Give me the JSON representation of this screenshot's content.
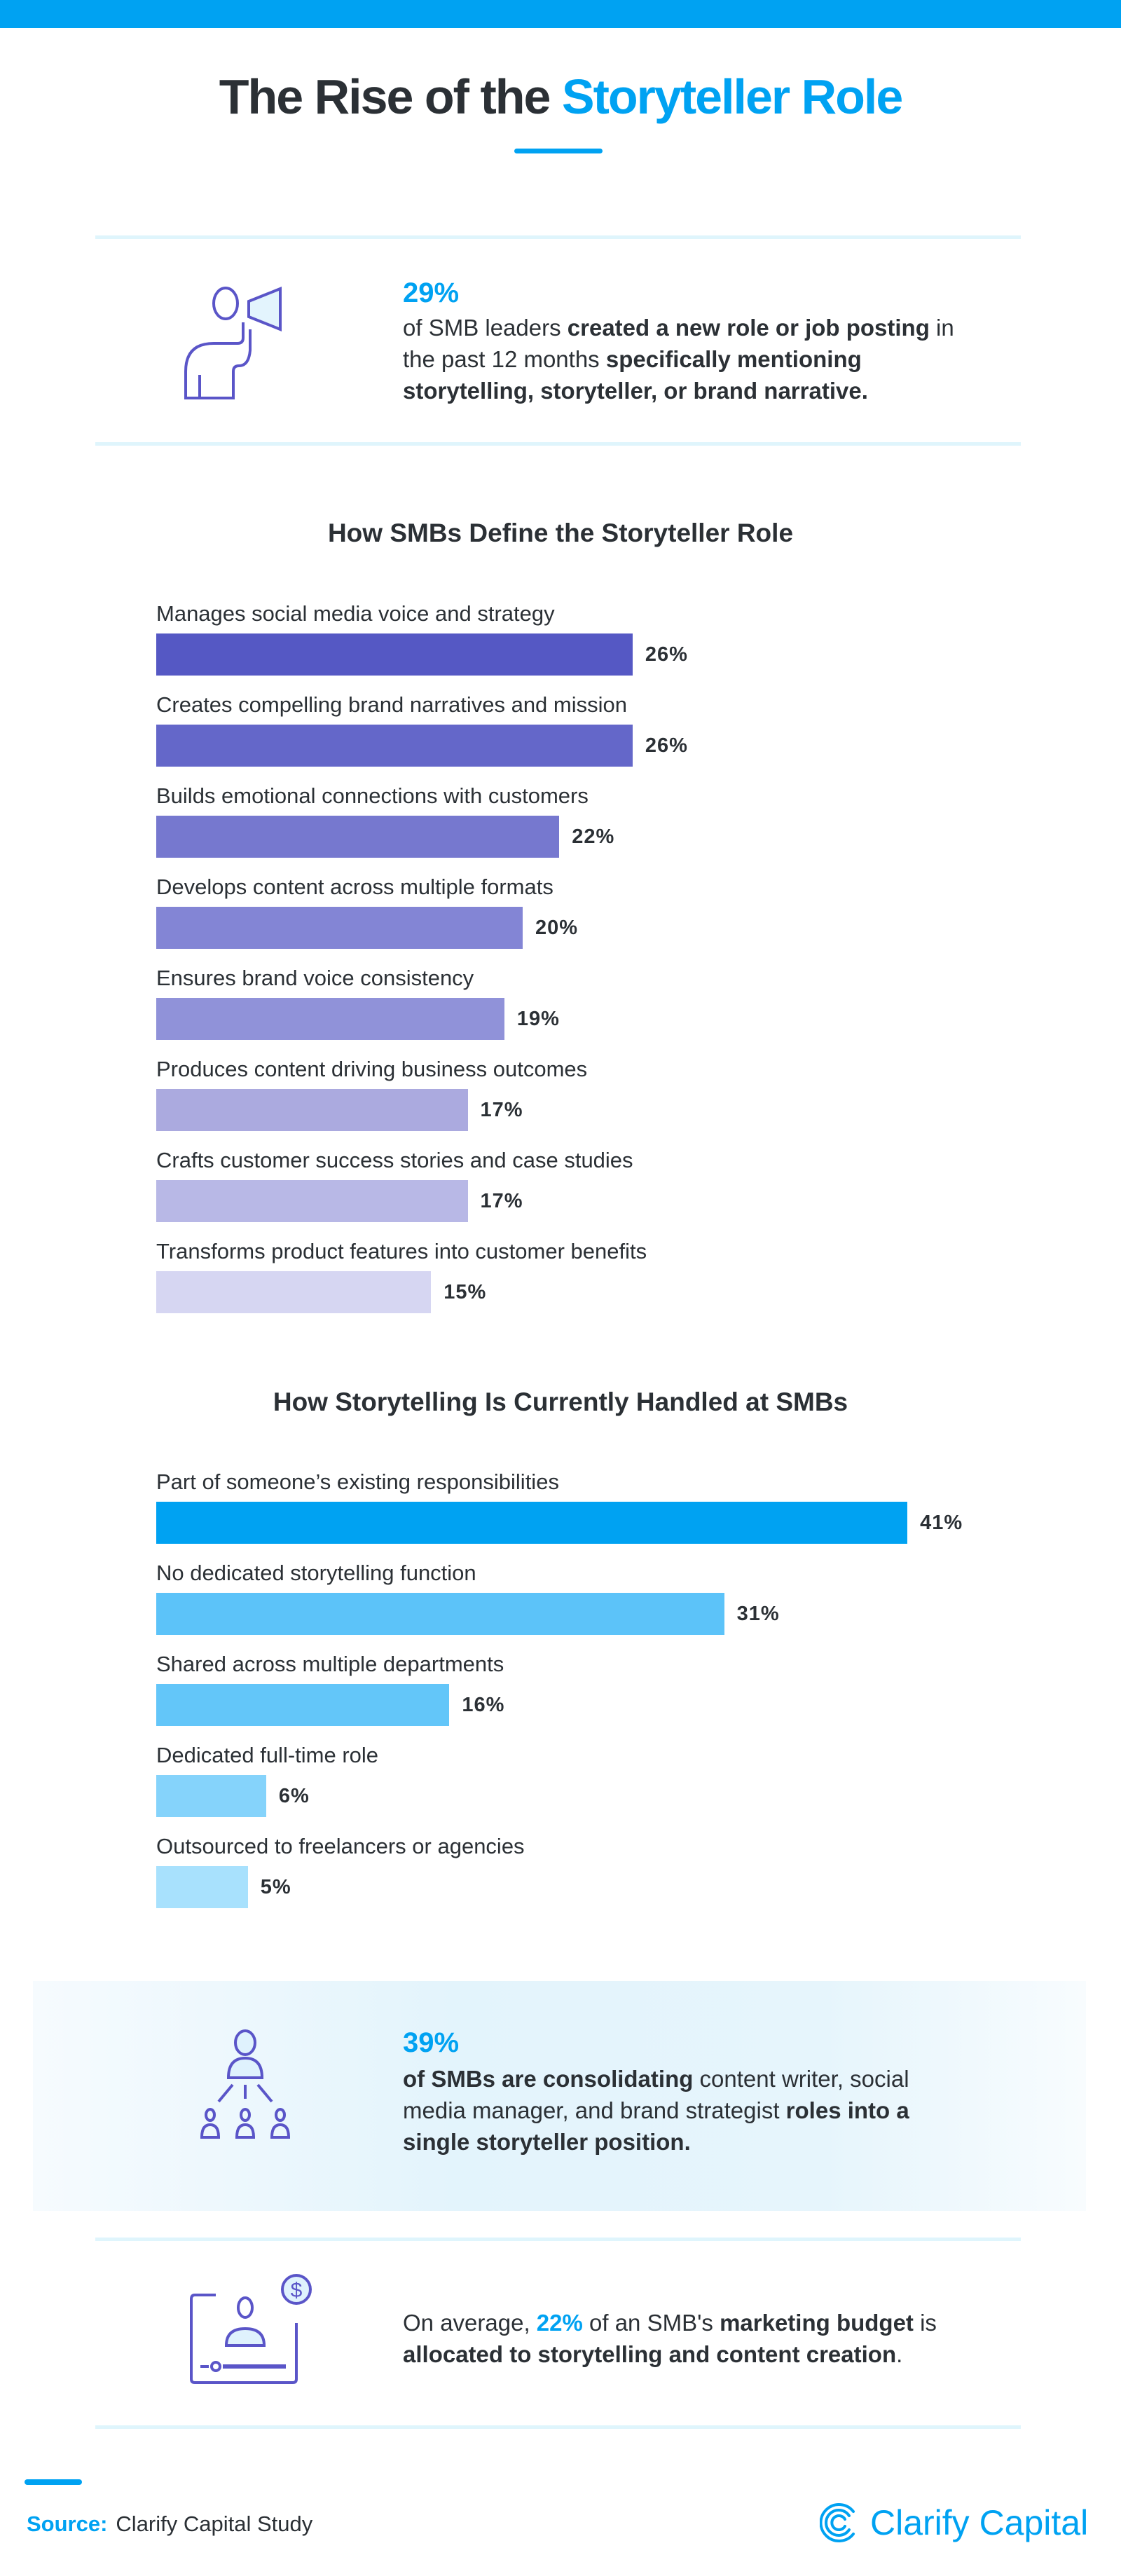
{
  "header": {
    "title_plain": "The Rise of the ",
    "title_highlight": "Storyteller Role"
  },
  "stat1": {
    "value": "29%",
    "text_1": "of SMB leaders ",
    "text_2": "created a new role or job posting",
    "text_3": " in the past 12 months ",
    "text_4": "specifically mentioning storytelling, storyteller, or brand narrative.",
    "icon": "megaphone-person-icon"
  },
  "chart_data": [
    {
      "type": "bar",
      "orientation": "horizontal",
      "title": "How SMBs Define the Storyteller Role",
      "categories": [
        "Manages social media voice and strategy",
        "Creates compelling brand narratives and mission",
        "Builds emotional connections with customers",
        "Develops content across multiple formats",
        "Ensures brand voice consistency",
        "Produces content driving business outcomes",
        "Crafts customer success stories and case studies",
        "Transforms product features into customer benefits"
      ],
      "values": [
        26,
        26,
        22,
        20,
        19,
        17,
        17,
        15
      ],
      "labels": [
        "26%",
        "26%",
        "22%",
        "20%",
        "19%",
        "17%",
        "17%",
        "15%"
      ],
      "colors": [
        "#5558c4",
        "#6467c9",
        "#7678cf",
        "#8385d5",
        "#9092d9",
        "#abaadf",
        "#b8b8e6",
        "#d6d6f2"
      ],
      "unit": "%"
    },
    {
      "type": "bar",
      "orientation": "horizontal",
      "title": "How Storytelling Is Currently Handled at SMBs",
      "categories": [
        "Part of someone’s existing responsibilities",
        "No dedicated storytelling function",
        "Shared across multiple departments",
        "Dedicated full-time role",
        "Outsourced to freelancers or agencies"
      ],
      "values": [
        41,
        31,
        16,
        6,
        5
      ],
      "labels": [
        "41%",
        "31%",
        "16%",
        "6%",
        "5%"
      ],
      "colors": [
        "#00a2f2",
        "#5cc3f9",
        "#63c6f9",
        "#85d3fb",
        "#a8e1fd"
      ],
      "unit": "%"
    }
  ],
  "stat2": {
    "value": "39%",
    "text_1": "of SMBs are consolidating",
    "text_2": " content writer, social media manager, and brand strategist ",
    "text_3": "roles into a single storyteller position.",
    "icon": "org-hierarchy-icon"
  },
  "stat3": {
    "text_1": "On average, ",
    "value": "22%",
    "text_2": " of an SMB's ",
    "text_3": "marketing budget",
    "text_4": " is ",
    "text_5": "allocated to storytelling and content creation",
    "text_6": ".",
    "icon": "budget-dollar-icon"
  },
  "footer": {
    "source_label": "Source:",
    "source_text": "Clarify Capital Study",
    "logo_text": "Clarify Capital"
  },
  "colors": {
    "accent": "#00a2f2",
    "icon": "#5a55c8",
    "text": "#2b3035"
  }
}
